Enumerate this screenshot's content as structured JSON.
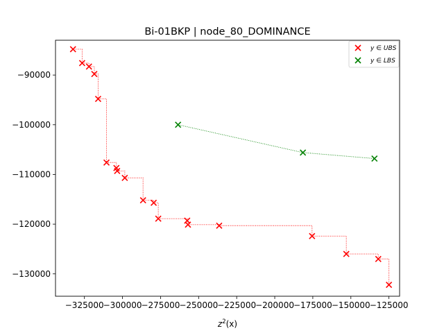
{
  "chart_data": {
    "type": "scatter",
    "title": "Bi-01BKP | node_80_DOMINANCE",
    "xlabel": "z²(x)",
    "ylabel": "",
    "xlim": [
      -344000,
      -118000
    ],
    "ylim": [
      -134500,
      -83000
    ],
    "xticks": [
      -325000,
      -300000,
      -275000,
      -250000,
      -225000,
      -200000,
      -175000,
      -150000,
      -125000
    ],
    "xtick_labels": [
      "−325000",
      "−300000",
      "−275000",
      "−250000",
      "−225000",
      "−200000",
      "−175000",
      "−150000",
      "−125000"
    ],
    "yticks": [
      -90000,
      -100000,
      -110000,
      -120000,
      -130000
    ],
    "ytick_labels": [
      "−90000",
      "−100000",
      "−110000",
      "−120000",
      "−130000"
    ],
    "legend_position": "top-right",
    "series": [
      {
        "name": "y ∈ UBS",
        "label_var": "y",
        "label_set": "UBS",
        "color": "#ff0000",
        "marker": "x",
        "points": [
          [
            -332500,
            -84800
          ],
          [
            -326500,
            -87600
          ],
          [
            -322000,
            -88300
          ],
          [
            -318500,
            -89800
          ],
          [
            -316000,
            -94800
          ],
          [
            -310500,
            -107600
          ],
          [
            -304000,
            -108700
          ],
          [
            -303500,
            -109300
          ],
          [
            -298500,
            -110700
          ],
          [
            -286500,
            -115200
          ],
          [
            -279500,
            -115700
          ],
          [
            -276500,
            -118900
          ],
          [
            -257500,
            -119300
          ],
          [
            -257000,
            -120100
          ],
          [
            -236500,
            -120300
          ],
          [
            -175500,
            -122400
          ],
          [
            -153000,
            -126000
          ],
          [
            -132000,
            -127000
          ],
          [
            -125000,
            -132200
          ]
        ]
      },
      {
        "name": "y ∈ LBS",
        "label_var": "y",
        "label_set": "LBS",
        "color": "#008000",
        "marker": "x",
        "points": [
          [
            -263500,
            -100000
          ],
          [
            -181500,
            -105600
          ],
          [
            -134500,
            -106800
          ]
        ]
      }
    ]
  }
}
